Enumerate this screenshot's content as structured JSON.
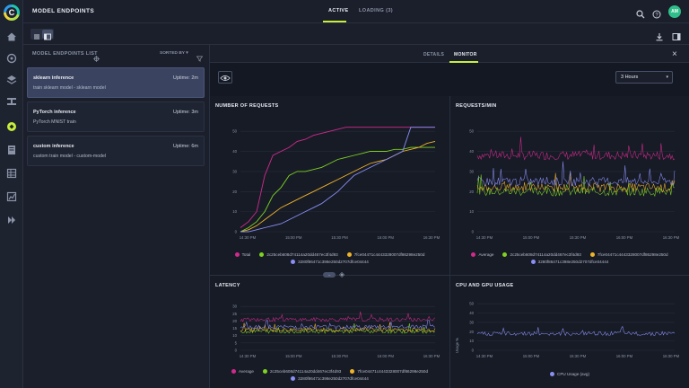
{
  "header": {
    "title": "MODEL ENDPOINTS",
    "tabs": [
      {
        "label": "ACTIVE",
        "active": true
      },
      {
        "label": "LOADING (3)",
        "active": false
      }
    ],
    "avatar_initials": "AM",
    "accent": "#c7ee3a"
  },
  "rail": {
    "icons": [
      "home-icon",
      "brain-icon",
      "layers-icon",
      "pipelines-icon",
      "model-endpoints-icon",
      "reports-icon",
      "table-icon",
      "chart-icon",
      "play-icon"
    ]
  },
  "list": {
    "title": "MODEL ENDPOINTS LIST",
    "sorted_by": "SORTED BY",
    "items": [
      {
        "name": "sklearn inference",
        "uptime": "Uptime: 2m",
        "desc": "train sklearn model - sklearn model",
        "selected": true
      },
      {
        "name": "PyTorch inference",
        "uptime": "Uptime: 3m",
        "desc": "PyTorch MNIST train",
        "selected": false
      },
      {
        "name": "custom inference",
        "uptime": "Uptime: 6m",
        "desc": "custom train model - custom-model",
        "selected": false
      }
    ]
  },
  "detail": {
    "tabs": [
      {
        "label": "DETAILS",
        "active": false
      },
      {
        "label": "MONITOR",
        "active": true
      }
    ],
    "range": "3 Hours"
  },
  "colors": {
    "total": "#d02a8c",
    "avg": "#d02a8c",
    "green": "#7ed321",
    "yellow": "#f0b429",
    "purple": "#8a8ff5",
    "cpu": "#8a8ff5"
  },
  "chart_data": [
    {
      "type": "line",
      "title": "NUMBER OF REQUESTS",
      "x_ticks": [
        "14:30 PM",
        "15:00 PM",
        "15:30 PM",
        "16:00 PM",
        "16:30 PM"
      ],
      "y_ticks": [
        0,
        10,
        20,
        30,
        40,
        50
      ],
      "ylim": [
        0,
        55
      ],
      "x": [
        0,
        1,
        2,
        3,
        4,
        5,
        6,
        7,
        8,
        9,
        10,
        11,
        12,
        13,
        14,
        15,
        16,
        17,
        18,
        19,
        20,
        21,
        22,
        23,
        24
      ],
      "series": [
        {
          "name": "Total",
          "color": "#d02a8c",
          "values": [
            2,
            5,
            10,
            28,
            38,
            40,
            42,
            45,
            46,
            48,
            49,
            50,
            51,
            52,
            52,
            52,
            52,
            52,
            52,
            52,
            52,
            52,
            52,
            52,
            52
          ]
        },
        {
          "name": "2c25ceb608d74114a20dd467ec3f4d93",
          "color": "#7ed321",
          "values": [
            0,
            2,
            5,
            10,
            18,
            22,
            28,
            30,
            30,
            31,
            32,
            34,
            36,
            37,
            38,
            39,
            40,
            40,
            40,
            41,
            41,
            42,
            42,
            42,
            42
          ]
        },
        {
          "name": "7fce04471c4443328007df86298e250d",
          "color": "#f0b429",
          "values": [
            0,
            1,
            3,
            6,
            9,
            12,
            14,
            16,
            18,
            20,
            22,
            24,
            26,
            28,
            30,
            32,
            34,
            35,
            36,
            38,
            40,
            41,
            42,
            44,
            45
          ]
        },
        {
          "name": "3280f86471c398e250d2707dfce04444",
          "color": "#8a8ff5",
          "values": [
            0,
            0,
            1,
            2,
            3,
            4,
            6,
            8,
            10,
            12,
            14,
            17,
            20,
            24,
            28,
            30,
            32,
            34,
            36,
            38,
            40,
            52,
            52,
            52,
            52
          ]
        }
      ]
    },
    {
      "type": "line",
      "title": "REQUESTS/MIN",
      "x_ticks": [
        "14:30 PM",
        "15:00 PM",
        "15:30 PM",
        "16:00 PM",
        "16:30 PM"
      ],
      "y_ticks": [
        0,
        10,
        20,
        30,
        40,
        50
      ],
      "ylim": [
        0,
        55
      ],
      "series": [
        {
          "name": "Average",
          "color": "#d02a8c",
          "level": 38
        },
        {
          "name": "2c25ceb608d74114a20dd467ec3f4d93",
          "color": "#7ed321",
          "level": 20
        },
        {
          "name": "7fce04471c4443328007df86298e250d",
          "color": "#f0b429",
          "level": 22
        },
        {
          "name": "3280f86471c398e250d2707dfce04444",
          "color": "#8a8ff5",
          "level": 25
        }
      ]
    },
    {
      "type": "line",
      "title": "LATENCY",
      "x_ticks": [
        "14:30 PM",
        "15:00 PM",
        "15:30 PM",
        "16:00 PM",
        "16:30 PM"
      ],
      "y_ticks": [
        0,
        5,
        10,
        15,
        20,
        25,
        30
      ],
      "ylim": [
        0,
        35
      ],
      "series": [
        {
          "name": "Average",
          "color": "#d02a8c",
          "level": 21
        },
        {
          "name": "2c25ceb608d74114a20dd467ec3f4d93",
          "color": "#7ed321",
          "level": 13
        },
        {
          "name": "7fce04471c4443328007df86298e250d",
          "color": "#f0b429",
          "level": 14
        },
        {
          "name": "3280f86471c398e250d2707dfce04444",
          "color": "#8a8ff5",
          "level": 16
        }
      ]
    },
    {
      "type": "line",
      "title": "CPU AND GPU USAGE",
      "ylabel": "Usage %",
      "x_ticks": [
        "14:30 PM",
        "15:00 PM",
        "15:30 PM",
        "16:00 PM",
        "16:30 PM"
      ],
      "y_ticks": [
        0,
        10,
        20,
        30,
        40,
        50
      ],
      "ylim": [
        0,
        55
      ],
      "series": [
        {
          "name": "CPU Usage (avg)",
          "color": "#8a8ff5",
          "level": 18
        }
      ]
    }
  ]
}
